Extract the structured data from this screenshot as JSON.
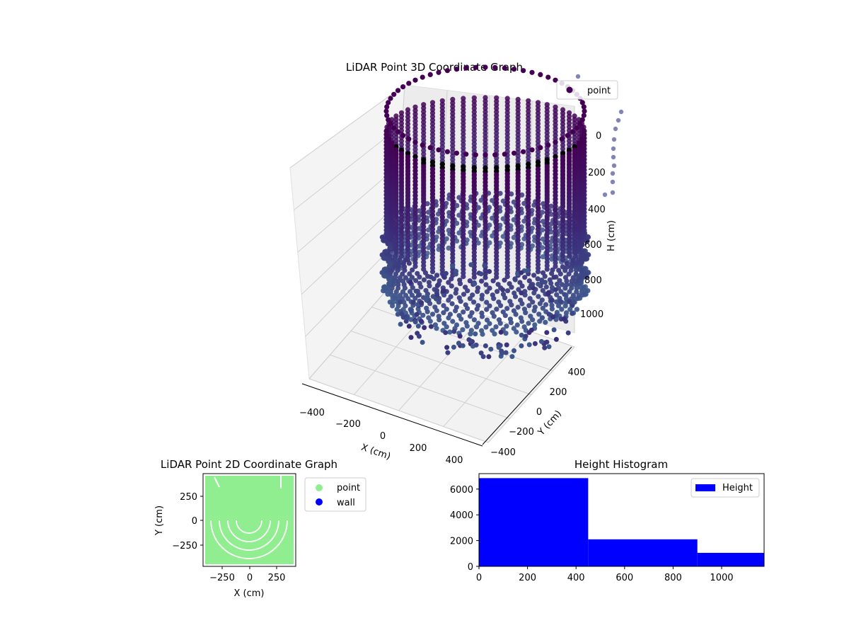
{
  "colors": {
    "scatter_top": "#440154",
    "scatter_mid": "#3b2a78",
    "scatter_low": "#3e5a8e",
    "outlier": "#6c6ea8",
    "points_2d": "#90ee90",
    "wall_2d": "#0000ff",
    "histogram": "#0000ff",
    "pane": "#f2f2f2",
    "grid": "#cfcfcf"
  },
  "chart_data": [
    {
      "type": "scatter",
      "title": "LiDAR Point 3D Coordinate Graph",
      "xlabel": "X (cm)",
      "ylabel": "Y (cm)",
      "zlabel": "H (cm)",
      "x_ticks": [
        "−400",
        "−200",
        "0",
        "200",
        "400"
      ],
      "y_ticks": [
        "400",
        "200",
        "0",
        "−200",
        "−400"
      ],
      "z_ticks": [
        "0",
        "200",
        "400",
        "600",
        "800",
        "1000"
      ],
      "z_inverted": true,
      "legend": [
        {
          "label": "point",
          "color": "#440154"
        }
      ],
      "legend_placement": "top-right",
      "grid": true,
      "description_values": {
        "shape": "cylinder",
        "radius_cm": 400,
        "height_range_cm": [
          0,
          1100
        ]
      }
    },
    {
      "type": "scatter",
      "title": "LiDAR Point 2D Coordinate Graph",
      "xlabel": "X (cm)",
      "ylabel": "Y (cm)",
      "x_ticks": [
        "−250",
        "0",
        "250"
      ],
      "y_ticks": [
        "250",
        "0",
        "−250"
      ],
      "xlim": [
        -430,
        430
      ],
      "ylim": [
        -430,
        430
      ],
      "legend": [
        {
          "label": "point",
          "color": "#90ee90"
        },
        {
          "label": "wall",
          "color": "#0000ff"
        }
      ],
      "legend_placement": "outside-right"
    },
    {
      "type": "bar",
      "title": "Height Histogram",
      "bins": [
        [
          0,
          450
        ],
        [
          450,
          900
        ],
        [
          900,
          1175
        ]
      ],
      "values": [
        6850,
        2100,
        1050
      ],
      "xlim": [
        0,
        1175
      ],
      "ylim": [
        0,
        7200
      ],
      "x_ticks": [
        "0",
        "200",
        "400",
        "600",
        "800",
        "1000"
      ],
      "y_ticks": [
        "0",
        "2000",
        "4000",
        "6000"
      ],
      "legend": [
        {
          "label": "Height",
          "color": "#0000ff"
        }
      ],
      "legend_placement": "top-right"
    }
  ]
}
